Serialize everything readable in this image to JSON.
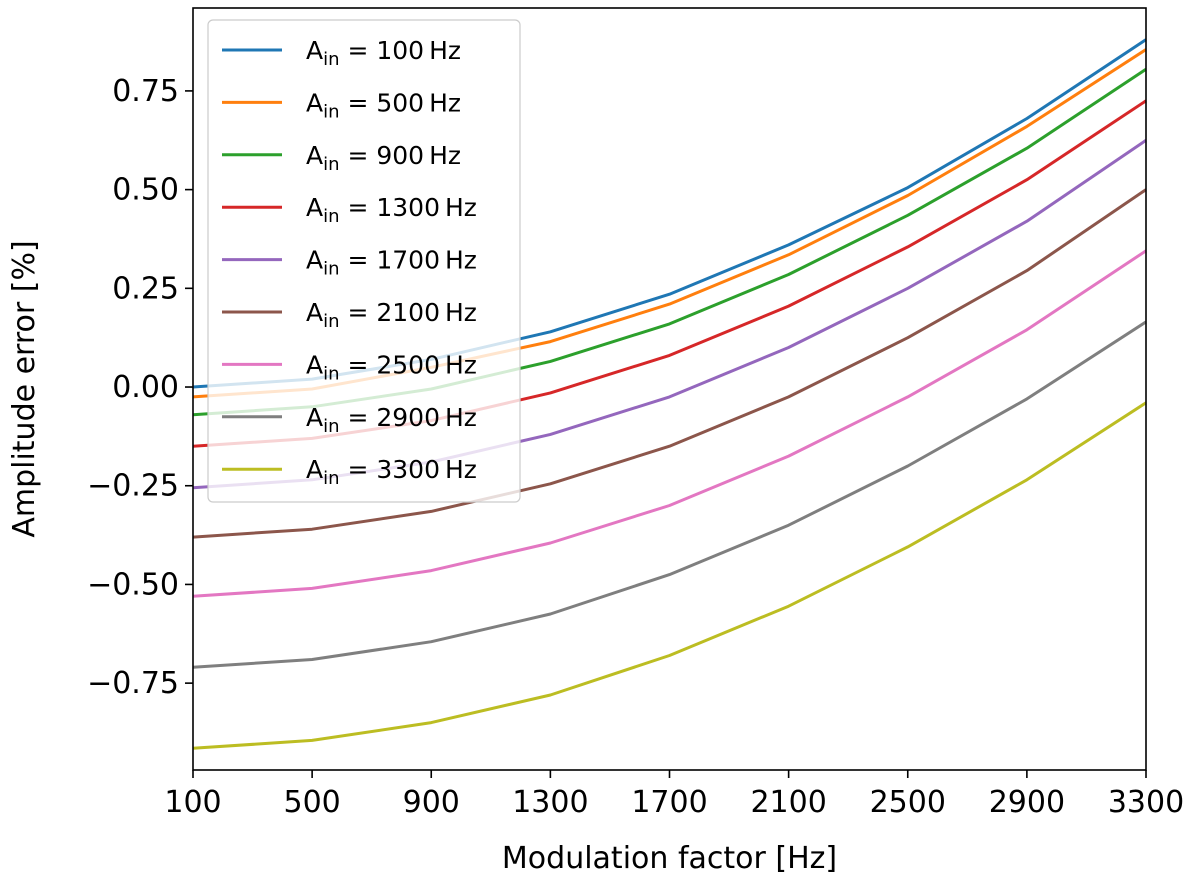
{
  "chart_data": {
    "type": "line",
    "title": "",
    "xlabel": "Modulation factor [Hz]",
    "ylabel": "Amplitude error [%]",
    "x": [
      100,
      500,
      900,
      1300,
      1700,
      2100,
      2500,
      2900,
      3300
    ],
    "xlim": [
      100,
      3300
    ],
    "ylim": [
      -0.97,
      0.96
    ],
    "xticks": [
      100,
      500,
      900,
      1300,
      1700,
      2100,
      2500,
      2900,
      3300
    ],
    "xtick_labels": [
      "100",
      "500",
      "900",
      "1300",
      "1700",
      "2100",
      "2500",
      "2900",
      "3300"
    ],
    "yticks": [
      0.75,
      0.5,
      0.25,
      0.0,
      -0.25,
      -0.5,
      -0.75
    ],
    "ytick_labels": [
      "0.75",
      "0.50",
      "0.25",
      "0.00",
      "−0.25",
      "−0.50",
      "−0.75"
    ],
    "grid": false,
    "legend_position": "top-left",
    "legend_prefix": "A",
    "legend_subscript": "in",
    "legend_unit": "Hz",
    "series": [
      {
        "name": "A_in = 100 Hz",
        "label_value": "100",
        "color": "#1f77b4",
        "values": [
          0.0,
          0.02,
          0.07,
          0.14,
          0.235,
          0.36,
          0.505,
          0.68,
          0.88
        ]
      },
      {
        "name": "A_in = 500 Hz",
        "label_value": "500",
        "color": "#ff7f0e",
        "values": [
          -0.025,
          -0.005,
          0.05,
          0.115,
          0.21,
          0.335,
          0.485,
          0.66,
          0.855
        ]
      },
      {
        "name": "A_in = 900 Hz",
        "label_value": "900",
        "color": "#2ca02c",
        "values": [
          -0.07,
          -0.05,
          -0.005,
          0.065,
          0.16,
          0.285,
          0.435,
          0.605,
          0.805
        ]
      },
      {
        "name": "A_in = 1300 Hz",
        "label_value": "1300",
        "color": "#d62728",
        "values": [
          -0.15,
          -0.13,
          -0.085,
          -0.015,
          0.08,
          0.205,
          0.355,
          0.525,
          0.725
        ]
      },
      {
        "name": "A_in = 1700 Hz",
        "label_value": "1700",
        "color": "#9467bd",
        "values": [
          -0.255,
          -0.235,
          -0.19,
          -0.12,
          -0.025,
          0.1,
          0.25,
          0.42,
          0.625
        ]
      },
      {
        "name": "A_in = 2100 Hz",
        "label_value": "2100",
        "color": "#8c564b",
        "values": [
          -0.38,
          -0.36,
          -0.315,
          -0.245,
          -0.15,
          -0.025,
          0.125,
          0.295,
          0.5
        ]
      },
      {
        "name": "A_in = 2500 Hz",
        "label_value": "2500",
        "color": "#e377c2",
        "values": [
          -0.53,
          -0.51,
          -0.465,
          -0.395,
          -0.3,
          -0.175,
          -0.025,
          0.145,
          0.345
        ]
      },
      {
        "name": "A_in = 2900 Hz",
        "label_value": "2900",
        "color": "#7f7f7f",
        "values": [
          -0.71,
          -0.69,
          -0.645,
          -0.575,
          -0.475,
          -0.35,
          -0.2,
          -0.03,
          0.165
        ]
      },
      {
        "name": "A_in = 3300 Hz",
        "label_value": "3300",
        "color": "#bcbd22",
        "values": [
          -0.915,
          -0.895,
          -0.85,
          -0.78,
          -0.68,
          -0.555,
          -0.405,
          -0.235,
          -0.04
        ]
      }
    ]
  }
}
